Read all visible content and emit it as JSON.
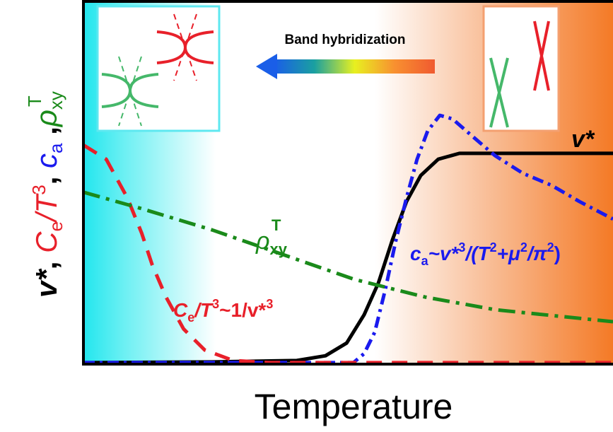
{
  "chart_data": {
    "type": "line",
    "x_label": "Temperature",
    "y_label": [
      "v*",
      ", ",
      "C",
      "e",
      "/T",
      "3",
      ", ",
      "c",
      "a",
      " ,",
      "ρ",
      "xy",
      "T"
    ],
    "annotation": "Band hybridization",
    "xlim": [
      0,
      100
    ],
    "ylim": [
      0,
      100
    ],
    "series": [
      {
        "name": [
          "v*"
        ],
        "color": "#000000",
        "style": "solid",
        "x": [
          0,
          24.3,
          40.3,
          45.7,
          49.7,
          53.0,
          55.7,
          58.3,
          61.0,
          63.7,
          67.0,
          71.0,
          100
        ],
        "values": [
          0.4,
          0.6,
          1.0,
          2.3,
          5.8,
          13.6,
          22.4,
          34.1,
          44.8,
          52.0,
          56.5,
          58.1,
          58.1
        ]
      },
      {
        "name": [
          "c",
          "a",
          "~v*",
          "3",
          "/(T",
          "2",
          "+μ",
          "2",
          "/π",
          "2",
          ")"
        ],
        "color": "#1a1aee",
        "style": "dashdot",
        "x": [
          0,
          51.0,
          53.0,
          55.0,
          57.0,
          59.0,
          61.0,
          63.0,
          65.0,
          67.3,
          69.7,
          73.0,
          77.7,
          83.0,
          88.4,
          93.7,
          100
        ],
        "values": [
          0.4,
          0.4,
          2.9,
          8.8,
          20.5,
          34.1,
          45.8,
          56.5,
          64.3,
          68.6,
          67.6,
          63.4,
          57.5,
          52.6,
          49.3,
          44.8,
          40.0
        ]
      },
      {
        "name": [
          "C",
          "e",
          "/T",
          "3",
          "~1/v*",
          "3"
        ],
        "color": "#e8202a",
        "style": "dashed",
        "x": [
          0,
          4.3,
          8.3,
          11.0,
          13.0,
          15.6,
          18.9,
          22.9,
          28.3,
          35.0,
          100
        ],
        "values": [
          60.4,
          56.5,
          45.8,
          36.1,
          27.3,
          18.5,
          9.7,
          3.9,
          1.0,
          0.4,
          0.4
        ]
      },
      {
        "name": [
          "ρ",
          "xy",
          "T"
        ],
        "color": "#1a8a1a",
        "style": "dashdot2",
        "x": [
          0,
          10.9,
          24.3,
          37.7,
          51.1,
          64.5,
          77.8,
          100
        ],
        "values": [
          47.4,
          42.9,
          37.0,
          30.2,
          23.4,
          18.5,
          15.0,
          11.7
        ]
      }
    ]
  }
}
